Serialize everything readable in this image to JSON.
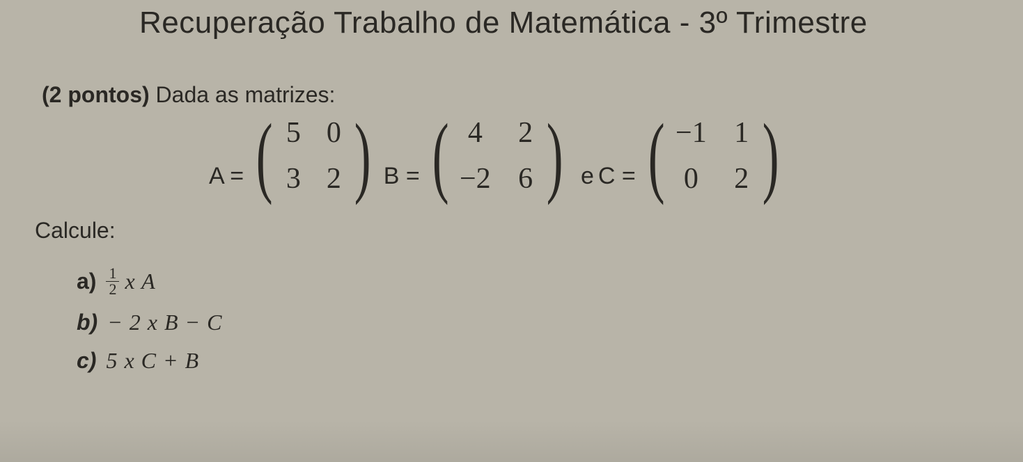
{
  "title": "Recuperação Trabalho de Matemática - 3º Trimestre",
  "questionPoints": "(2 pontos)",
  "questionText": "Dada as matrizes:",
  "matrices": {
    "A": {
      "label": "A =",
      "cells": [
        "5",
        "0",
        "3",
        "2"
      ]
    },
    "B": {
      "label": "B =",
      "cells": [
        "4",
        "2",
        "−2",
        "6"
      ]
    },
    "C": {
      "label": "C =",
      "eLabel": "e",
      "cells": [
        "−1",
        "1",
        "0",
        "2"
      ]
    }
  },
  "calcLabel": "Calcule:",
  "items": {
    "a": {
      "label": "a)",
      "fracNum": "1",
      "fracDen": "2",
      "tail": "x A"
    },
    "b": {
      "label": "b)",
      "expr": "− 2 x B  − C"
    },
    "c": {
      "label": "c)",
      "expr": "5 x C  + B"
    }
  },
  "style": {
    "bg": "#b8b4a8",
    "text": "#2a2824",
    "titleSize": 44,
    "bodySize": 32,
    "matrixSize": 42,
    "parenSize": 130
  }
}
